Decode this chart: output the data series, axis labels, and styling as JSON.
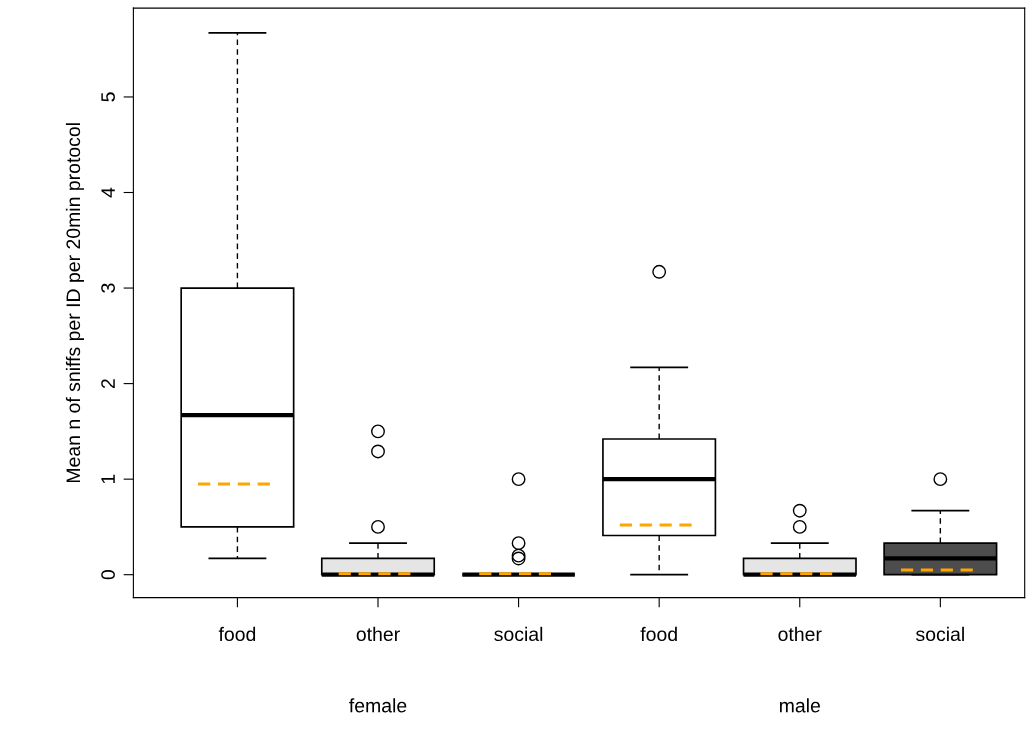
{
  "chart_data": {
    "type": "box",
    "ylabel": "Mean n of sniffs per ID per 20min protocol",
    "categories": [
      "food",
      "other",
      "social",
      "food",
      "other",
      "social"
    ],
    "colors": [
      "#ffffff",
      "#e5e5e5",
      null,
      "#ffffff",
      "#e5e5e5",
      "#4d4d4d"
    ],
    "boxes": [
      {
        "low": 0.17,
        "q1": 0.5,
        "median": 1.67,
        "q3": 3.0,
        "high": 5.67,
        "mean": 0.95
      },
      {
        "low": 0,
        "q1": 0,
        "median": 0,
        "q3": 0.17,
        "high": 0.33,
        "mean": 0.01,
        "outliers": [
          0.5,
          1.29,
          1.5
        ]
      },
      {
        "low": 0,
        "q1": 0,
        "median": 0,
        "q3": 0,
        "high": 0,
        "mean": 0.01,
        "outliers": [
          0.17,
          0.2,
          0.33,
          1.0
        ]
      },
      {
        "low": 0,
        "q1": 0.41,
        "median": 1.0,
        "q3": 1.42,
        "high": 2.17,
        "mean": 0.52,
        "outliers": [
          3.17
        ]
      },
      {
        "low": 0,
        "q1": 0,
        "median": 0,
        "q3": 0.17,
        "high": 0.33,
        "mean": 0.01,
        "outliers": [
          0.5,
          0.67
        ]
      },
      {
        "low": 0,
        "q1": 0,
        "median": 0.17,
        "q3": 0.33,
        "high": 0.67,
        "mean": 0.05,
        "outliers": [
          1.0
        ]
      }
    ],
    "ylim": [
      -0.24,
      5.93
    ],
    "yticks": [
      0,
      1,
      2,
      3,
      4,
      5
    ],
    "annotations": [
      "female",
      "male"
    ]
  }
}
